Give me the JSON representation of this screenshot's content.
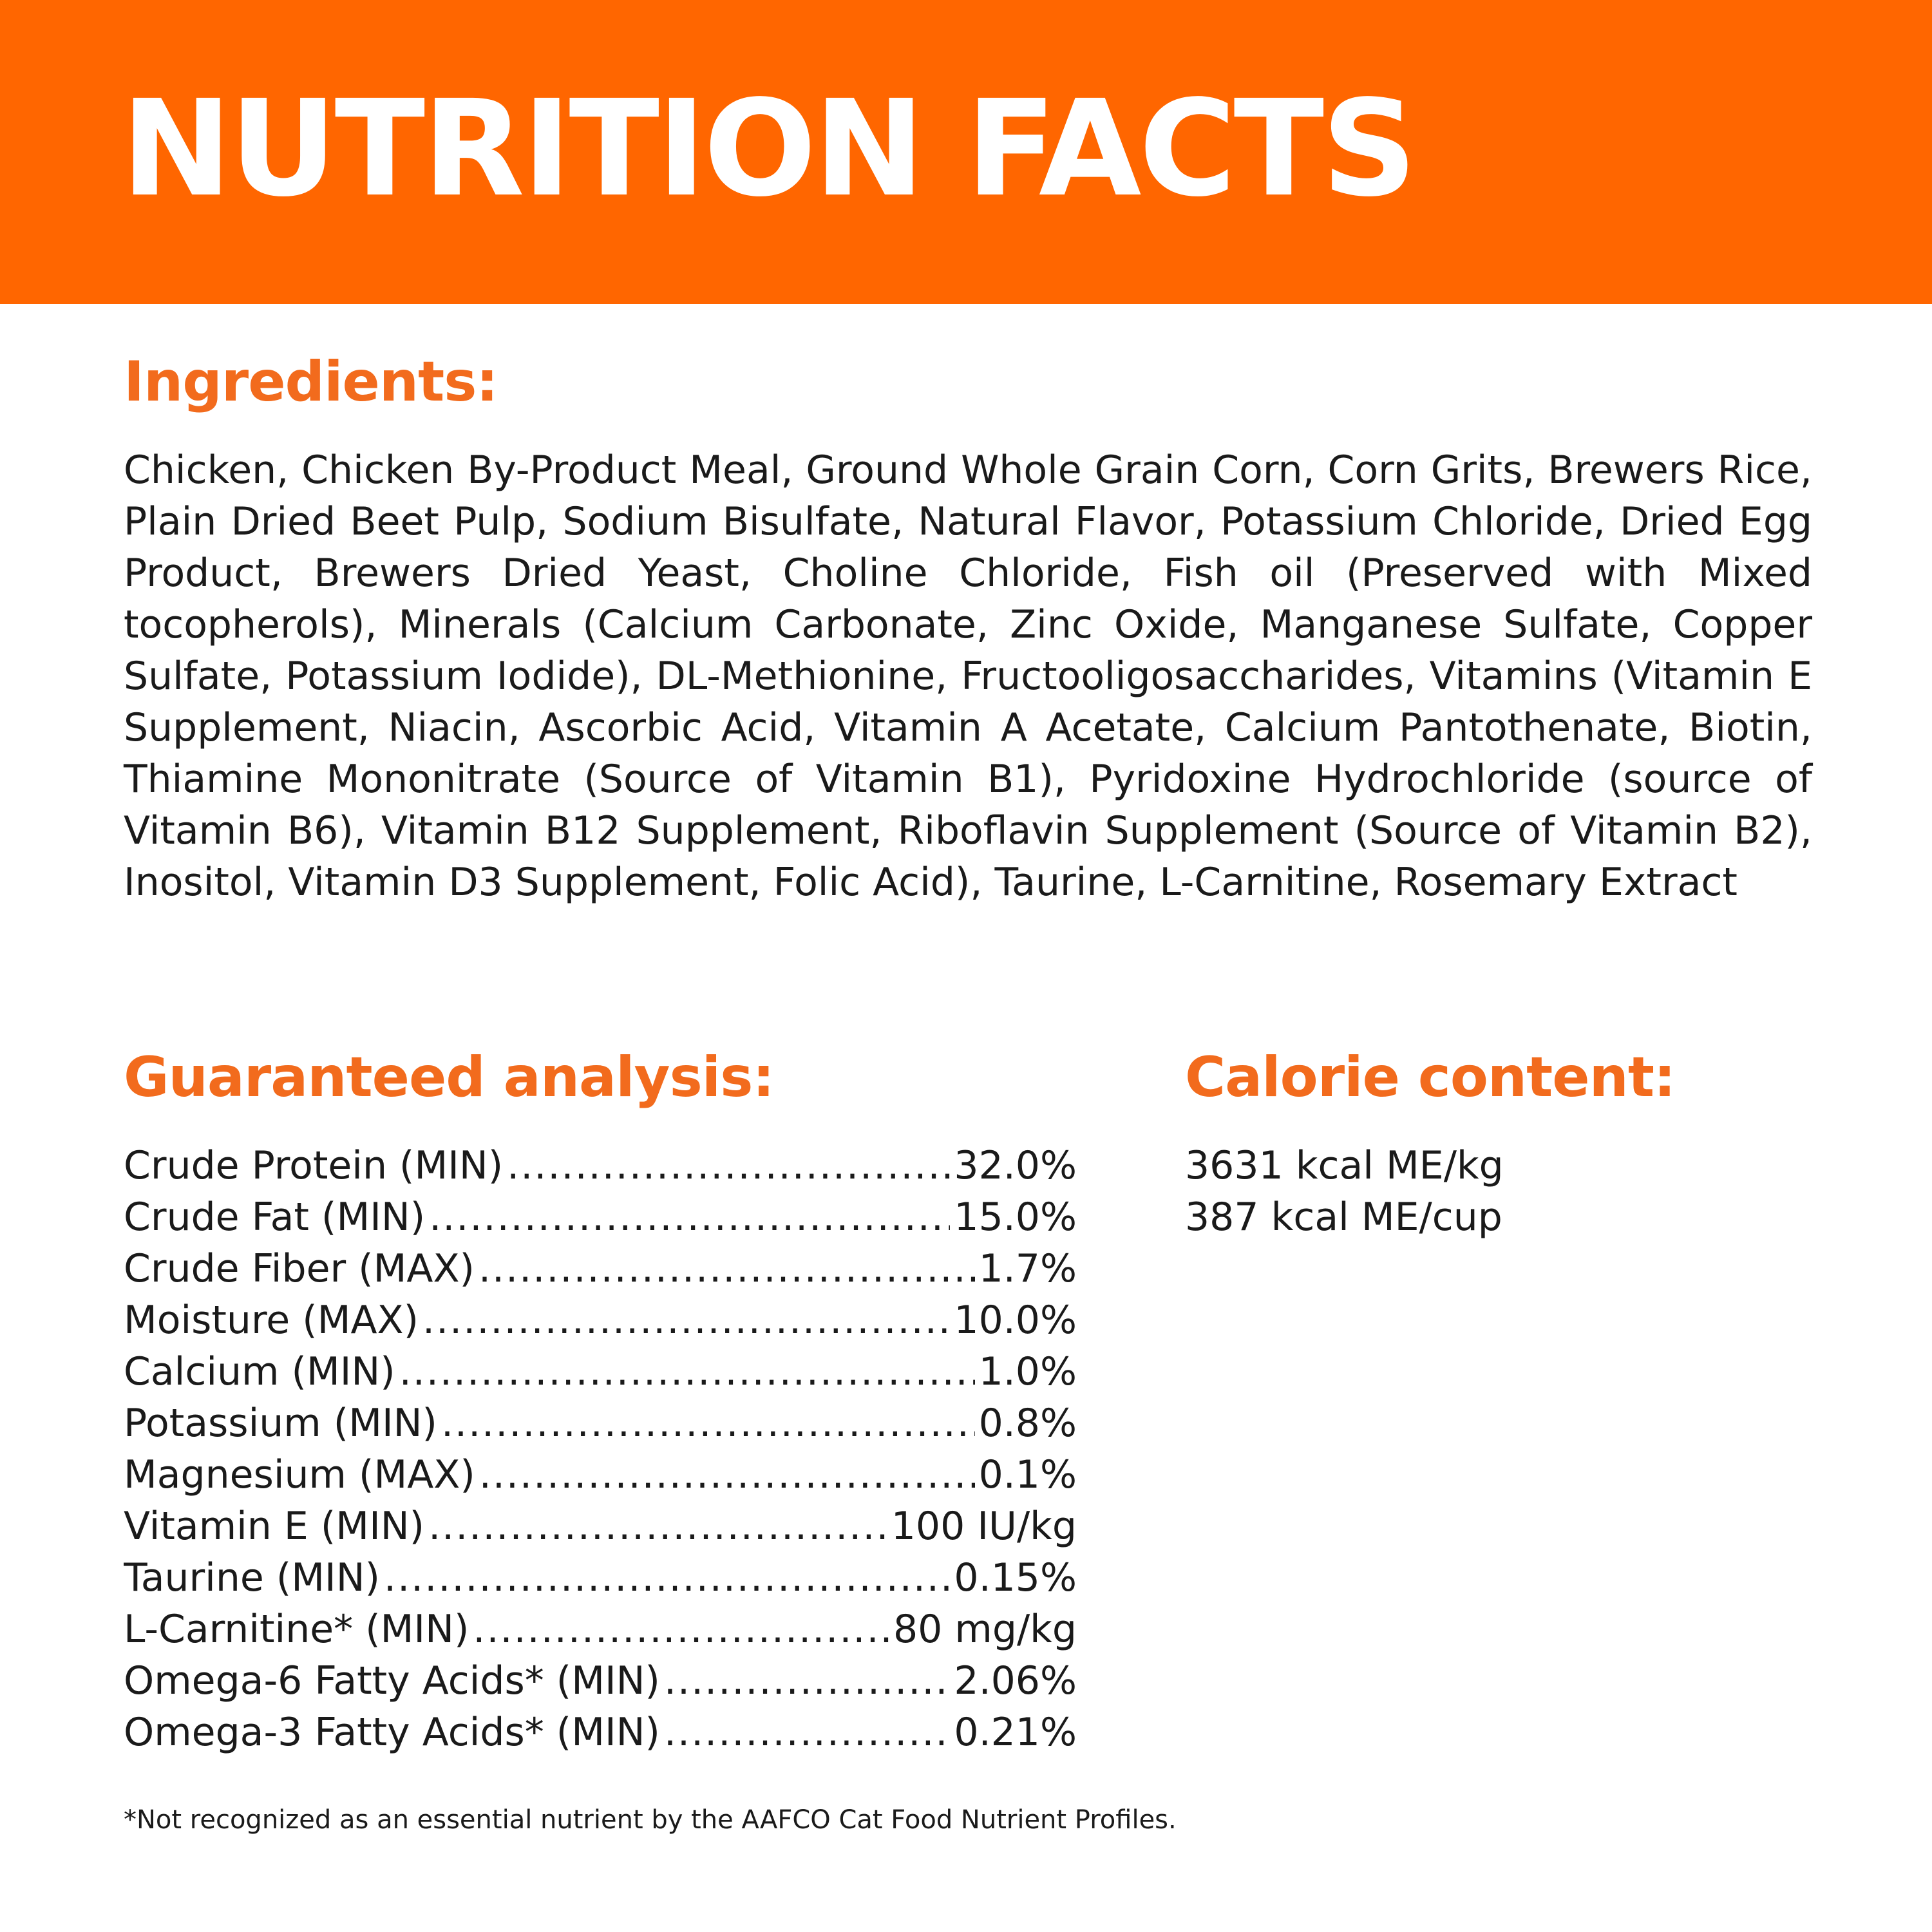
{
  "header": {
    "title": "NUTRITION FACTS"
  },
  "ingredients": {
    "heading": "Ingredients:",
    "text": "Chicken, Chicken By-Product Meal, Ground Whole Grain Corn, Corn Grits, Brewers Rice, Plain Dried Beet Pulp, Sodium Bisulfate, Natural Flavor, Potassium Chloride, Dried Egg Product, Brewers Dried Yeast, Choline Chloride, Fish oil (Preserved with Mixed tocopherols), Minerals (Calcium Carbonate, Zinc Oxide, Manganese Sulfate, Copper Sulfate, Potassium Iodide), DL-Methionine, Fructooligosaccharides, Vitamins (Vitamin E Supplement, Niacin, Ascorbic Acid, Vitamin A Acetate, Calcium Pantothenate, Biotin, Thiamine Mononitrate (Source of Vitamin B1), Pyridoxine Hydrochloride (source of Vitamin B6), Vitamin B12 Supplement, Riboflavin Supplement (Source of Vitamin B2), Inositol, Vitamin D3 Supplement, Folic Acid), Taurine, L-Carnitine, Rosemary Extract"
  },
  "analysis": {
    "heading": "Guaranteed analysis:",
    "rows": [
      {
        "label": "Crude Protein (MIN)",
        "value": "32.0%"
      },
      {
        "label": "Crude Fat (MIN)",
        "value": "15.0%"
      },
      {
        "label": "Crude Fiber (MAX)",
        "value": "1.7%"
      },
      {
        "label": "Moisture (MAX)",
        "value": "10.0%"
      },
      {
        "label": "Calcium (MIN)",
        "value": "1.0%"
      },
      {
        "label": "Potassium (MIN)",
        "value": "0.8%"
      },
      {
        "label": "Magnesium (MAX)",
        "value": "0.1%"
      },
      {
        "label": "Vitamin E (MIN)",
        "value": "100 IU/kg"
      },
      {
        "label": "Taurine (MIN)",
        "value": "0.15%"
      },
      {
        "label": "L-Carnitine* (MIN)",
        "value": "80 mg/kg"
      },
      {
        "label": "Omega-6 Fatty Acids* (MIN)",
        "value": "2.06%"
      },
      {
        "label": "Omega-3 Fatty Acids* (MIN)",
        "value": "0.21%"
      }
    ]
  },
  "calorie": {
    "heading": "Calorie content:",
    "lines": [
      "3631 kcal ME/kg",
      "387 kcal ME/cup"
    ]
  },
  "footnote": "*Not recognized as an essential nutrient by the AAFCO Cat Food Nutrient Profiles.",
  "colors": {
    "header_band": "#ff6600",
    "heading_orange": "#f26b1d",
    "body_text": "#1a1a1a",
    "background": "#ffffff"
  }
}
